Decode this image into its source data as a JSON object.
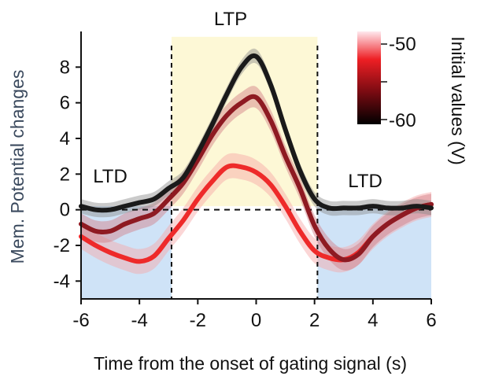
{
  "chart_data": {
    "type": "line",
    "xlabel": "Time from the onset of gating signal (s)",
    "ylabel": "Mem. Potential  changes",
    "xlim": [
      -6,
      6
    ],
    "ylim": [
      -5,
      10
    ],
    "x_ticks": [
      "-6",
      "-4",
      "-2",
      "0",
      "2",
      "4",
      "6"
    ],
    "y_ticks": [
      "-4",
      "-2",
      "0",
      "2",
      "4",
      "6",
      "8"
    ],
    "grid": false,
    "reference_lines": {
      "horizontal_dashed_at": 0,
      "vertical_dashed_at": [
        -2.9,
        2.1
      ]
    },
    "regions": [
      {
        "label": "LTD",
        "x": [
          -6,
          -2.9
        ],
        "y": [
          -5,
          0.2
        ],
        "color": "#cfe3f7"
      },
      {
        "label": "LTP",
        "x": [
          -2.9,
          2.1
        ],
        "y": [
          0.2,
          9.7
        ],
        "color": "#fdf8d6"
      },
      {
        "label": "LTD",
        "x": [
          2.1,
          6
        ],
        "y": [
          -5,
          0.2
        ],
        "color": "#cfe3f7"
      }
    ],
    "colorbar": {
      "label": "Initial values (V)",
      "ticks": [
        "-50",
        "-60"
      ],
      "range": [
        -60,
        -50
      ],
      "colors": [
        "#ffe8ee",
        "#ee1f24",
        "#7a0b12",
        "#000000"
      ]
    },
    "series": [
      {
        "color": "#1a1a1a",
        "band_color": "#8a8a8a",
        "x": [
          -6,
          -5.5,
          -5,
          -4.5,
          -4,
          -3.5,
          -3,
          -2.5,
          -2,
          -1.5,
          -1,
          -0.5,
          0,
          0.5,
          1,
          1.5,
          2,
          2.5,
          3,
          3.5,
          4,
          4.5,
          5,
          5.5,
          6
        ],
        "values": [
          0.2,
          0,
          0,
          0.2,
          0.4,
          0.6,
          1.2,
          1.8,
          3.2,
          4.8,
          6.5,
          8,
          8.6,
          7,
          4.5,
          2.2,
          0.6,
          0.1,
          0.1,
          0.1,
          0.2,
          0.1,
          0.1,
          0.2,
          0.1
        ],
        "band": 0.4
      },
      {
        "color": "#8e1a22",
        "band_color": "#d07a82",
        "x": [
          -6,
          -5.5,
          -5,
          -4.5,
          -4,
          -3.5,
          -3,
          -2.5,
          -2,
          -1.5,
          -1,
          -0.5,
          0,
          0.5,
          1,
          1.5,
          2,
          2.5,
          3,
          3.5,
          4,
          4.5,
          5,
          5.5,
          6
        ],
        "values": [
          -0.8,
          -1.2,
          -1.2,
          -0.8,
          -0.5,
          -0.2,
          0.6,
          1.5,
          2.8,
          4.2,
          5.3,
          6,
          6.3,
          5,
          3,
          1.2,
          -0.9,
          -2.2,
          -2.8,
          -2.5,
          -1.5,
          -0.8,
          -0.3,
          0.1,
          0.3
        ],
        "band": 0.6
      },
      {
        "color": "#ee2a2a",
        "band_color": "#f6a5a5",
        "x": [
          -6,
          -5.5,
          -5,
          -4.5,
          -4,
          -3.5,
          -3,
          -2.5,
          -2,
          -1.5,
          -1,
          -0.5,
          0,
          0.5,
          1,
          1.5,
          2,
          2.5,
          3,
          3.5,
          4,
          4.5,
          5,
          5.5,
          6
        ],
        "values": [
          -1.5,
          -2,
          -2.4,
          -2.7,
          -2.9,
          -2.6,
          -1.6,
          -0.6,
          0.6,
          1.6,
          2.4,
          2.4,
          2.1,
          1.4,
          0.2,
          -1.2,
          -2.3,
          -2.7,
          -2.8,
          -2.4,
          -1.5,
          -0.8,
          -0.3,
          0.1,
          0.3
        ],
        "band": 0.7
      }
    ]
  },
  "labels": {
    "ltp": "LTP",
    "ltd_left": "LTD",
    "ltd_right": "LTD"
  }
}
